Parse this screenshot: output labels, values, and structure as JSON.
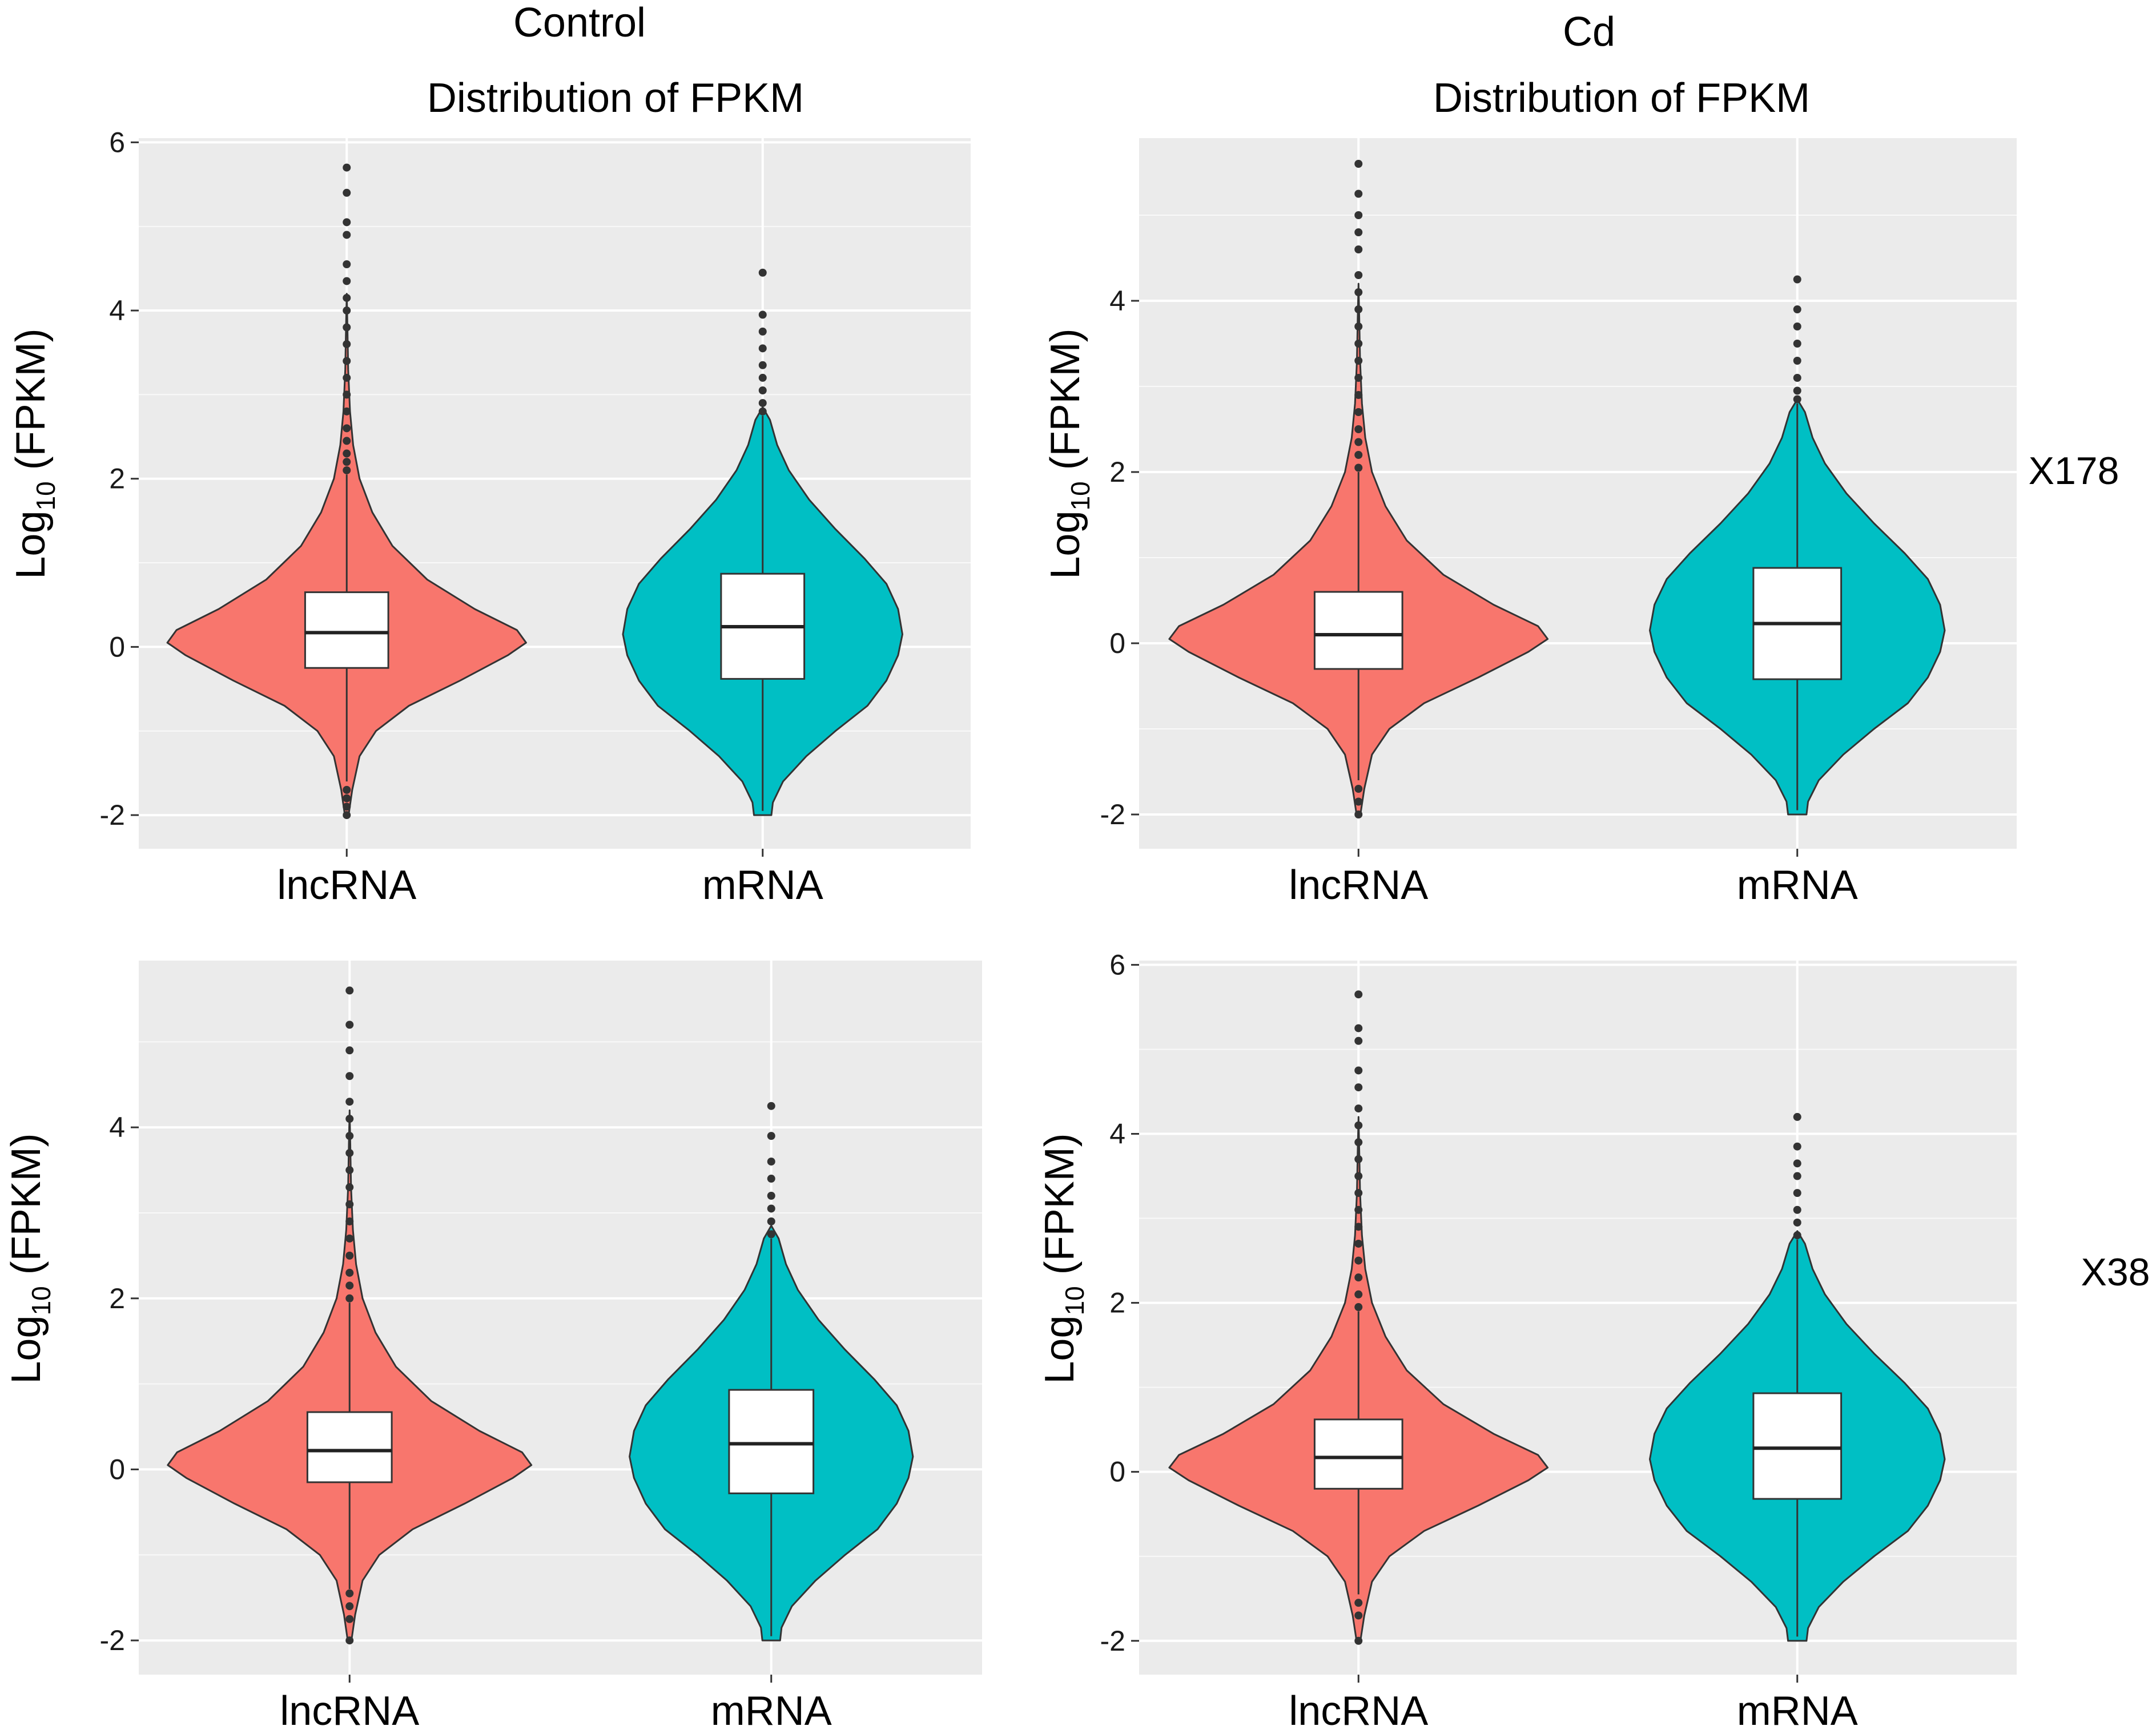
{
  "labels": {
    "col_left": "Control",
    "col_right": "Cd",
    "row_top": "X178",
    "row_bottom": "X38",
    "ylabel_main": "Log",
    "ylabel_sub": "10",
    "ylabel_rest": " (FPKM)"
  },
  "colors": {
    "lncRNA": "#F8766D",
    "mRNA": "#00BFC4",
    "panel_bg": "#EBEBEB",
    "grid": "#FFFFFF",
    "outline": "#333333"
  },
  "chart_data": [
    {
      "type": "violin",
      "title": "Distribution of FPKM",
      "column": "Control",
      "row": "X178",
      "xlabel": "",
      "ylabel": "Log10 (FPKM)",
      "ylim": [
        -2.4,
        6.05
      ],
      "yticks": [
        "6",
        "4",
        "2",
        "0",
        "-2"
      ],
      "categories": [
        "lncRNA",
        "mRNA"
      ],
      "series": [
        {
          "name": "lncRNA",
          "q1": -0.25,
          "median": 0.17,
          "q3": 0.65,
          "whisker_low": -1.6,
          "whisker_high": 2.05,
          "outliers_low": [
            -1.7,
            -1.8,
            -1.9,
            -2.0
          ],
          "outliers_high": [
            2.1,
            2.2,
            2.3,
            2.45,
            2.6,
            2.8,
            3.0,
            3.2,
            3.4,
            3.6,
            3.8,
            4.0,
            4.15,
            4.35,
            4.55,
            4.9,
            5.05,
            5.4,
            5.7
          ]
        },
        {
          "name": "mRNA",
          "q1": -0.38,
          "median": 0.24,
          "q3": 0.87,
          "whisker_low": -1.95,
          "whisker_high": 2.75,
          "outliers_low": [],
          "outliers_high": [
            2.8,
            2.9,
            3.05,
            3.2,
            3.35,
            3.55,
            3.75,
            3.95,
            4.45
          ]
        }
      ]
    },
    {
      "type": "violin",
      "title": "Distribution of FPKM",
      "column": "Cd",
      "row": "X178",
      "xlabel": "",
      "ylabel": "Log10 (FPKM)",
      "ylim": [
        -2.4,
        5.9
      ],
      "yticks": [
        "4",
        "2",
        "0",
        "-2"
      ],
      "categories": [
        "lncRNA",
        "mRNA"
      ],
      "series": [
        {
          "name": "lncRNA",
          "q1": -0.3,
          "median": 0.1,
          "q3": 0.6,
          "whisker_low": -1.6,
          "whisker_high": 2.0,
          "outliers_low": [
            -1.7,
            -1.85,
            -2.0
          ],
          "outliers_high": [
            2.05,
            2.2,
            2.35,
            2.5,
            2.7,
            2.9,
            3.1,
            3.3,
            3.5,
            3.7,
            3.9,
            4.1,
            4.3,
            4.6,
            4.8,
            5.0,
            5.25,
            5.6
          ]
        },
        {
          "name": "mRNA",
          "q1": -0.42,
          "median": 0.23,
          "q3": 0.88,
          "whisker_low": -1.95,
          "whisker_high": 2.8,
          "outliers_low": [],
          "outliers_high": [
            2.85,
            2.95,
            3.1,
            3.3,
            3.5,
            3.7,
            3.9,
            4.25
          ]
        }
      ]
    },
    {
      "type": "violin",
      "title": "",
      "column": "Control",
      "row": "X38",
      "xlabel": "",
      "ylabel": "Log10 (FPKM)",
      "ylim": [
        -2.4,
        5.95
      ],
      "yticks": [
        "4",
        "2",
        "0",
        "-2"
      ],
      "categories": [
        "lncRNA",
        "mRNA"
      ],
      "series": [
        {
          "name": "lncRNA",
          "q1": -0.15,
          "median": 0.22,
          "q3": 0.67,
          "whisker_low": -1.4,
          "whisker_high": 1.95,
          "outliers_low": [
            -1.45,
            -1.6,
            -1.75,
            -2.0
          ],
          "outliers_high": [
            2.0,
            2.15,
            2.3,
            2.5,
            2.7,
            2.9,
            3.1,
            3.3,
            3.5,
            3.7,
            3.9,
            4.1,
            4.3,
            4.6,
            4.9,
            5.2,
            5.6
          ]
        },
        {
          "name": "mRNA",
          "q1": -0.28,
          "median": 0.3,
          "q3": 0.93,
          "whisker_low": -1.95,
          "whisker_high": 2.7,
          "outliers_low": [],
          "outliers_high": [
            2.75,
            2.9,
            3.05,
            3.2,
            3.4,
            3.6,
            3.9,
            4.25
          ]
        }
      ]
    },
    {
      "type": "violin",
      "title": "",
      "column": "Cd",
      "row": "X38",
      "xlabel": "",
      "ylabel": "Log10 (FPKM)",
      "ylim": [
        -2.4,
        6.05
      ],
      "yticks": [
        "6",
        "4",
        "2",
        "0",
        "-2"
      ],
      "categories": [
        "lncRNA",
        "mRNA"
      ],
      "series": [
        {
          "name": "lncRNA",
          "q1": -0.2,
          "median": 0.17,
          "q3": 0.62,
          "whisker_low": -1.45,
          "whisker_high": 1.9,
          "outliers_low": [
            -1.55,
            -1.7,
            -2.0
          ],
          "outliers_high": [
            1.95,
            2.1,
            2.3,
            2.5,
            2.7,
            2.9,
            3.1,
            3.3,
            3.5,
            3.7,
            3.9,
            4.1,
            4.3,
            4.55,
            4.75,
            5.1,
            5.25,
            5.65
          ]
        },
        {
          "name": "mRNA",
          "q1": -0.32,
          "median": 0.28,
          "q3": 0.93,
          "whisker_low": -1.95,
          "whisker_high": 2.75,
          "outliers_low": [],
          "outliers_high": [
            2.8,
            2.95,
            3.1,
            3.3,
            3.5,
            3.65,
            3.85,
            4.2
          ]
        }
      ]
    }
  ]
}
